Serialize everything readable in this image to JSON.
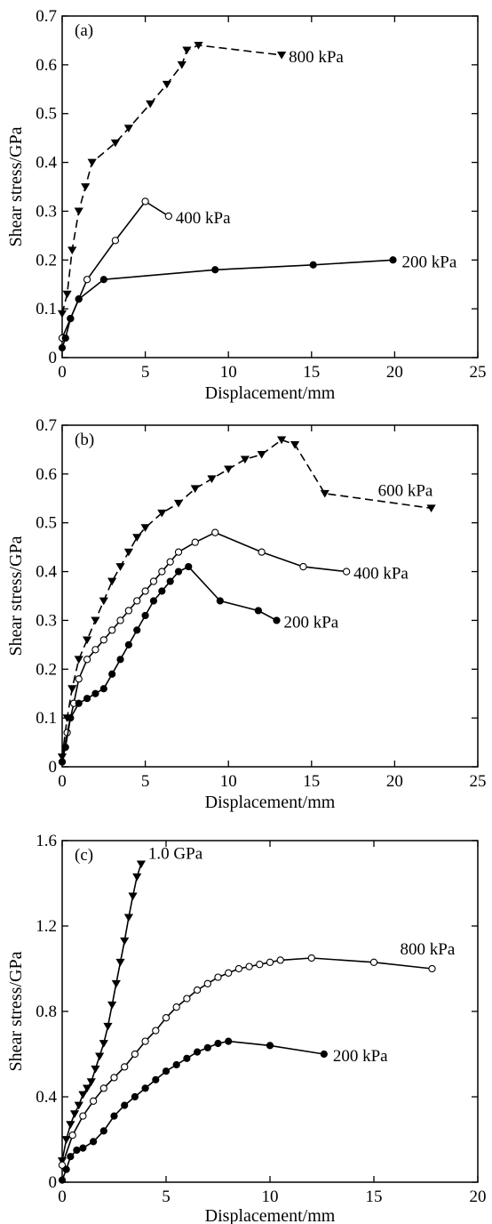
{
  "chart_data": [
    {
      "type": "line",
      "panel_label": "(a)",
      "xlabel": "Displacement/mm",
      "ylabel": "Shear stress/GPa",
      "xlim": [
        0,
        25
      ],
      "ylim": [
        0,
        0.7
      ],
      "xticks": [
        0,
        5,
        10,
        15,
        20,
        25
      ],
      "yticks": [
        0,
        0.1,
        0.2,
        0.3,
        0.4,
        0.5,
        0.6,
        0.7
      ],
      "xtick_labels": [
        "0",
        "5",
        "10",
        "15",
        "20",
        "25"
      ],
      "ytick_labels": [
        "0",
        "0.1",
        "0.2",
        "0.3",
        "0.4",
        "0.5",
        "0.6",
        "0.7"
      ],
      "grid": false,
      "series": [
        {
          "name": "800 kPa",
          "marker": "triangle-down-filled",
          "line_style": "dashed",
          "x": [
            0,
            0.3,
            0.6,
            1.0,
            1.4,
            1.8,
            3.2,
            4.0,
            5.3,
            6.3,
            7.2,
            7.5,
            8.2,
            13.2
          ],
          "y": [
            0.09,
            0.13,
            0.22,
            0.3,
            0.35,
            0.4,
            0.44,
            0.47,
            0.52,
            0.56,
            0.6,
            0.63,
            0.64,
            0.62
          ]
        },
        {
          "name": "400 kPa",
          "marker": "circle-open",
          "line_style": "solid",
          "x": [
            0,
            0.5,
            1.0,
            1.5,
            3.2,
            5.0,
            6.4
          ],
          "y": [
            0.04,
            0.08,
            0.12,
            0.16,
            0.24,
            0.32,
            0.29
          ]
        },
        {
          "name": "200 kPa",
          "marker": "circle-filled",
          "line_style": "solid",
          "x": [
            0,
            0.2,
            0.5,
            1.0,
            2.5,
            9.2,
            15.1,
            19.9
          ],
          "y": [
            0.02,
            0.04,
            0.08,
            0.12,
            0.16,
            0.18,
            0.19,
            0.2
          ]
        }
      ]
    },
    {
      "type": "line",
      "panel_label": "(b)",
      "xlabel": "Displacement/mm",
      "ylabel": "Shear stress/GPa",
      "xlim": [
        0,
        25
      ],
      "ylim": [
        0,
        0.7
      ],
      "xticks": [
        0,
        5,
        10,
        15,
        20,
        25
      ],
      "yticks": [
        0,
        0.1,
        0.2,
        0.3,
        0.4,
        0.5,
        0.6,
        0.7
      ],
      "xtick_labels": [
        "0",
        "5",
        "10",
        "15",
        "20",
        "25"
      ],
      "ytick_labels": [
        "0",
        "0.1",
        "0.2",
        "0.3",
        "0.4",
        "0.5",
        "0.6",
        "0.7"
      ],
      "grid": false,
      "series": [
        {
          "name": "600 kPa",
          "marker": "triangle-down-filled",
          "line_style": "dashed",
          "x": [
            0,
            0.3,
            0.6,
            1.0,
            1.5,
            2.0,
            2.5,
            3.0,
            3.5,
            4.0,
            4.5,
            5.0,
            6.0,
            7.0,
            8.0,
            9.0,
            10.0,
            11.0,
            12.0,
            13.2,
            14.0,
            15.8,
            22.2
          ],
          "y": [
            0.02,
            0.1,
            0.16,
            0.22,
            0.26,
            0.3,
            0.34,
            0.38,
            0.41,
            0.44,
            0.47,
            0.49,
            0.52,
            0.54,
            0.57,
            0.59,
            0.61,
            0.63,
            0.64,
            0.67,
            0.66,
            0.56,
            0.53
          ]
        },
        {
          "name": "400 kPa",
          "marker": "circle-open",
          "line_style": "solid",
          "x": [
            0,
            0.3,
            0.7,
            1.0,
            1.5,
            2.0,
            2.5,
            3.0,
            3.5,
            4.0,
            4.5,
            5.0,
            5.5,
            6.0,
            6.5,
            7.0,
            8.0,
            9.2,
            12.0,
            14.5,
            17.1
          ],
          "y": [
            0.01,
            0.07,
            0.13,
            0.18,
            0.22,
            0.24,
            0.26,
            0.28,
            0.3,
            0.32,
            0.34,
            0.36,
            0.38,
            0.4,
            0.42,
            0.44,
            0.46,
            0.48,
            0.44,
            0.41,
            0.4
          ]
        },
        {
          "name": "200 kPa",
          "marker": "circle-filled",
          "line_style": "solid",
          "x": [
            0,
            0.2,
            0.5,
            1.0,
            1.5,
            2.0,
            2.5,
            3.0,
            3.5,
            4.0,
            4.5,
            5.0,
            5.5,
            6.0,
            6.5,
            7.0,
            7.6,
            9.5,
            11.8,
            12.9
          ],
          "y": [
            0.01,
            0.04,
            0.1,
            0.13,
            0.14,
            0.15,
            0.16,
            0.19,
            0.22,
            0.25,
            0.28,
            0.31,
            0.34,
            0.36,
            0.38,
            0.4,
            0.41,
            0.34,
            0.32,
            0.3
          ]
        }
      ]
    },
    {
      "type": "line",
      "panel_label": "(c)",
      "xlabel": "Displacement/mm",
      "ylabel": "Shear stress/GPa",
      "xlim": [
        0,
        20
      ],
      "ylim": [
        0,
        1.6
      ],
      "xticks": [
        0,
        5,
        10,
        15,
        20
      ],
      "yticks": [
        0,
        0.4,
        0.8,
        1.2,
        1.6
      ],
      "xtick_labels": [
        "0",
        "5",
        "10",
        "15",
        "20"
      ],
      "ytick_labels": [
        "0",
        "0.4",
        "0.8",
        "1.2",
        "1.6"
      ],
      "grid": false,
      "series": [
        {
          "name": "1.0 GPa",
          "marker": "triangle-down-filled",
          "line_style": "solid",
          "x": [
            0,
            0.2,
            0.4,
            0.6,
            0.8,
            1.0,
            1.2,
            1.4,
            1.6,
            1.8,
            2.0,
            2.2,
            2.4,
            2.6,
            2.8,
            3.0,
            3.2,
            3.4,
            3.6,
            3.8
          ],
          "y": [
            0.1,
            0.2,
            0.27,
            0.32,
            0.36,
            0.41,
            0.44,
            0.47,
            0.53,
            0.59,
            0.65,
            0.73,
            0.83,
            0.93,
            1.03,
            1.13,
            1.24,
            1.34,
            1.43,
            1.49
          ]
        },
        {
          "name": "800 kPa",
          "marker": "circle-open",
          "line_style": "solid",
          "x": [
            0,
            0.5,
            1.0,
            1.5,
            2.0,
            2.5,
            3.0,
            3.5,
            4.0,
            4.5,
            5.0,
            5.5,
            6.0,
            6.5,
            7.0,
            7.5,
            8.0,
            8.5,
            9.0,
            9.5,
            10.0,
            10.5,
            12.0,
            15.0,
            17.8
          ],
          "y": [
            0.08,
            0.22,
            0.31,
            0.38,
            0.44,
            0.49,
            0.54,
            0.6,
            0.66,
            0.71,
            0.77,
            0.82,
            0.86,
            0.9,
            0.93,
            0.96,
            0.98,
            1.0,
            1.01,
            1.02,
            1.03,
            1.04,
            1.05,
            1.03,
            1.0
          ]
        },
        {
          "name": "200 kPa",
          "marker": "circle-filled",
          "line_style": "solid",
          "x": [
            0,
            0.2,
            0.4,
            0.7,
            1.0,
            1.5,
            2.0,
            2.5,
            3.0,
            3.5,
            4.0,
            4.5,
            5.0,
            5.5,
            6.0,
            6.5,
            7.0,
            7.5,
            8.0,
            10.0,
            12.6
          ],
          "y": [
            0.01,
            0.06,
            0.12,
            0.15,
            0.16,
            0.19,
            0.24,
            0.31,
            0.36,
            0.4,
            0.44,
            0.48,
            0.52,
            0.55,
            0.58,
            0.61,
            0.63,
            0.65,
            0.66,
            0.64,
            0.6
          ]
        }
      ]
    }
  ]
}
